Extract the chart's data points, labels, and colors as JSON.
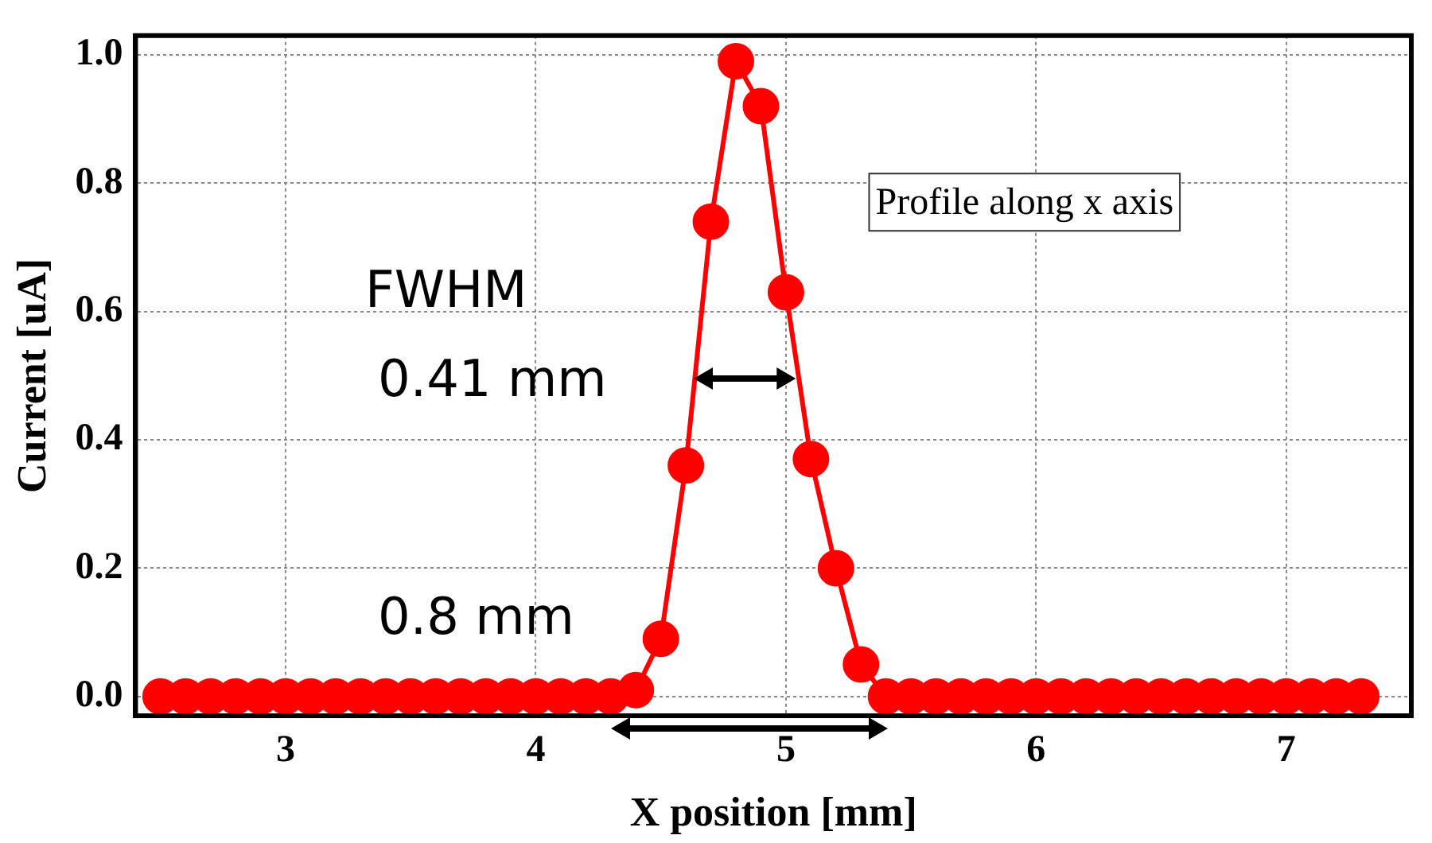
{
  "chart_data": {
    "type": "line",
    "xlabel": "X position [mm]",
    "ylabel": "Current [uA]",
    "x": [
      2.5,
      2.6,
      2.7,
      2.8,
      2.9,
      3.0,
      3.1,
      3.2,
      3.3,
      3.4,
      3.5,
      3.6,
      3.7,
      3.8,
      3.9,
      4.0,
      4.1,
      4.2,
      4.3,
      4.4,
      4.5,
      4.6,
      4.7,
      4.8,
      4.9,
      5.0,
      5.1,
      5.2,
      5.3,
      5.4,
      5.5,
      5.6,
      5.7,
      5.8,
      5.9,
      6.0,
      6.1,
      6.2,
      6.3,
      6.4,
      6.5,
      6.6,
      6.7,
      6.8,
      6.9,
      7.0,
      7.1,
      7.2,
      7.3
    ],
    "series": [
      {
        "color": "#ff0000",
        "values": [
          0,
          0,
          0,
          0,
          0,
          0,
          0,
          0,
          0,
          0,
          0,
          0,
          0,
          0,
          0,
          0,
          0,
          0,
          0,
          0.01,
          0.09,
          0.36,
          0.74,
          0.99,
          0.92,
          0.63,
          0.37,
          0.2,
          0.05,
          0,
          0,
          0,
          0,
          0,
          0,
          0,
          0,
          0,
          0,
          0,
          0,
          0,
          0,
          0,
          0,
          0,
          0,
          0,
          0
        ]
      }
    ],
    "xlim": [
      2.4,
      7.5
    ],
    "xticks": [
      3,
      4,
      5,
      6,
      7
    ],
    "ylim": [
      -0.03,
      1.03
    ],
    "yticks": [
      {
        "value": 0,
        "label": "0.0"
      },
      {
        "value": 0.2,
        "label": "0.2"
      },
      {
        "value": 0.4,
        "label": "0.4"
      },
      {
        "value": 0.6,
        "label": "0.6"
      },
      {
        "value": 0.8,
        "label": "0.8"
      },
      {
        "value": 1,
        "label": "1.0"
      }
    ],
    "grid": true,
    "marker": "circle",
    "line_style": "solid",
    "legend": false,
    "annotations": [
      "FWHM",
      "0.41 mm",
      "0.8 mm",
      "Profile along x axis"
    ]
  }
}
